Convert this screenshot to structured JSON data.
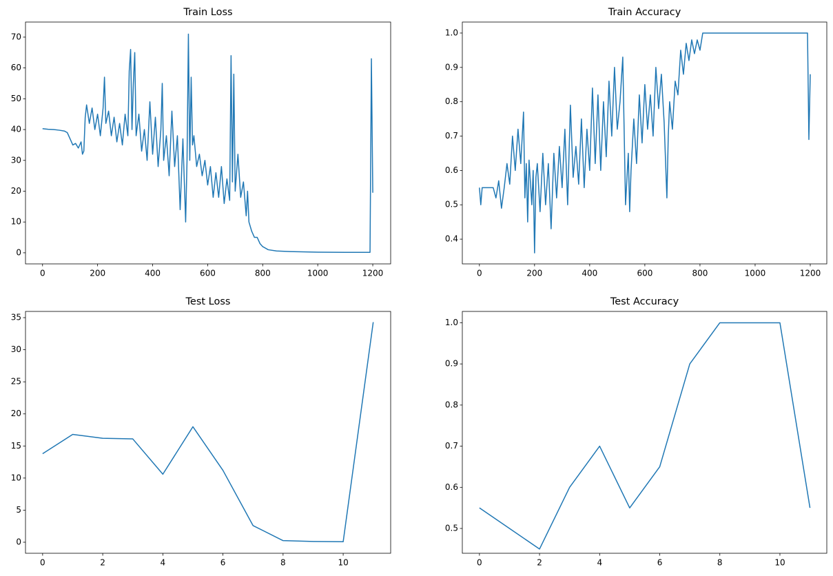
{
  "chart_data": [
    {
      "type": "line",
      "title": "Train Loss",
      "color": "#1f77b4",
      "grid": false,
      "x": [
        0,
        20,
        40,
        60,
        80,
        90,
        100,
        110,
        120,
        130,
        140,
        145,
        150,
        155,
        160,
        170,
        180,
        190,
        200,
        210,
        220,
        225,
        230,
        240,
        250,
        260,
        270,
        280,
        290,
        300,
        310,
        315,
        320,
        325,
        330,
        335,
        340,
        350,
        360,
        370,
        380,
        390,
        400,
        410,
        420,
        430,
        435,
        440,
        450,
        460,
        470,
        480,
        490,
        500,
        510,
        520,
        525,
        530,
        535,
        540,
        545,
        550,
        560,
        570,
        580,
        590,
        600,
        610,
        620,
        630,
        640,
        650,
        660,
        670,
        680,
        685,
        690,
        695,
        700,
        710,
        720,
        730,
        740,
        745,
        750,
        760,
        770,
        780,
        790,
        800,
        820,
        850,
        900,
        1000,
        1100,
        1190,
        1195,
        1200
      ],
      "values": [
        40.3,
        40.1,
        40.0,
        39.8,
        39.5,
        39.0,
        37,
        35,
        35.5,
        34,
        36,
        32,
        33,
        44,
        48,
        42,
        47,
        40,
        45,
        38,
        47,
        57,
        42,
        46,
        38,
        44,
        36,
        42,
        35,
        45,
        38,
        59,
        66,
        40,
        55,
        65,
        38,
        45,
        33,
        40,
        30,
        49,
        32,
        44,
        28,
        40,
        55,
        30,
        38,
        25,
        46,
        28,
        38,
        14,
        37,
        10,
        30,
        71,
        30,
        57,
        35,
        38,
        28,
        32,
        25,
        30,
        22,
        28,
        18,
        26,
        18,
        28,
        16,
        24,
        17,
        64,
        23,
        58,
        20,
        32,
        18,
        23,
        12,
        20,
        10,
        7,
        5,
        5,
        3,
        2,
        1,
        0.6,
        0.4,
        0.2,
        0.15,
        0.15,
        63,
        19.5
      ],
      "xlim": [
        -62,
        1265
      ],
      "ylim": [
        -3.6,
        74.9
      ],
      "xticks": [
        0,
        200,
        400,
        600,
        800,
        1000,
        1200
      ],
      "yticks": [
        0,
        10,
        20,
        30,
        40,
        50,
        60,
        70
      ]
    },
    {
      "type": "line",
      "title": "Train Accuracy",
      "color": "#1f77b4",
      "grid": false,
      "x": [
        0,
        5,
        10,
        50,
        60,
        70,
        80,
        90,
        100,
        110,
        120,
        130,
        140,
        150,
        160,
        165,
        170,
        175,
        180,
        190,
        195,
        200,
        205,
        210,
        220,
        230,
        240,
        250,
        260,
        270,
        280,
        290,
        300,
        310,
        320,
        330,
        340,
        350,
        360,
        370,
        380,
        390,
        400,
        410,
        420,
        430,
        440,
        450,
        460,
        470,
        480,
        490,
        500,
        510,
        520,
        530,
        540,
        545,
        550,
        560,
        570,
        580,
        590,
        600,
        610,
        620,
        630,
        640,
        650,
        660,
        670,
        680,
        685,
        690,
        700,
        710,
        720,
        730,
        740,
        750,
        760,
        770,
        780,
        790,
        800,
        810,
        1190,
        1195,
        1200
      ],
      "values": [
        0.55,
        0.5,
        0.55,
        0.55,
        0.52,
        0.57,
        0.49,
        0.55,
        0.62,
        0.56,
        0.7,
        0.6,
        0.72,
        0.62,
        0.77,
        0.52,
        0.62,
        0.45,
        0.63,
        0.5,
        0.6,
        0.36,
        0.58,
        0.62,
        0.48,
        0.65,
        0.5,
        0.62,
        0.43,
        0.65,
        0.52,
        0.67,
        0.55,
        0.72,
        0.5,
        0.79,
        0.58,
        0.67,
        0.56,
        0.75,
        0.55,
        0.72,
        0.6,
        0.84,
        0.62,
        0.82,
        0.6,
        0.8,
        0.64,
        0.86,
        0.7,
        0.9,
        0.72,
        0.8,
        0.93,
        0.5,
        0.65,
        0.48,
        0.6,
        0.75,
        0.62,
        0.82,
        0.68,
        0.85,
        0.72,
        0.82,
        0.7,
        0.9,
        0.78,
        0.88,
        0.74,
        0.52,
        0.7,
        0.8,
        0.72,
        0.86,
        0.82,
        0.95,
        0.88,
        0.97,
        0.92,
        0.98,
        0.94,
        0.98,
        0.95,
        1.0,
        1.0,
        0.69,
        0.88
      ],
      "xlim": [
        -62,
        1260
      ],
      "ylim": [
        0.328,
        1.032
      ],
      "xticks": [
        0,
        200,
        400,
        600,
        800,
        1000,
        1200
      ],
      "yticks": [
        0.4,
        0.5,
        0.6,
        0.7,
        0.8,
        0.9,
        {
          "value": 1,
          "label": "1.0"
        }
      ]
    },
    {
      "type": "line",
      "title": "Test Loss",
      "color": "#1f77b4",
      "grid": false,
      "x": [
        0,
        1,
        2,
        3,
        4,
        5,
        6,
        7,
        8,
        9,
        10,
        11
      ],
      "values": [
        13.8,
        16.8,
        16.2,
        16.1,
        10.6,
        18.0,
        11.2,
        2.6,
        0.25,
        0.12,
        0.08,
        34.3
      ],
      "xlim": [
        -0.57,
        11.58
      ],
      "ylim": [
        -1.72,
        35.97
      ],
      "xticks": [
        0,
        2,
        4,
        6,
        8,
        10
      ],
      "yticks": [
        0,
        5,
        10,
        15,
        20,
        25,
        30,
        35
      ]
    },
    {
      "type": "line",
      "title": "Test Accuracy",
      "color": "#1f77b4",
      "grid": false,
      "x": [
        0,
        1,
        2,
        3,
        4,
        5,
        6,
        7,
        8,
        9,
        10,
        11
      ],
      "values": [
        0.55,
        0.5,
        0.45,
        0.6,
        0.7,
        0.55,
        0.65,
        0.9,
        1.0,
        1.0,
        1.0,
        0.55
      ],
      "xlim": [
        -0.57,
        11.56
      ],
      "ylim": [
        0.4397,
        1.0276
      ],
      "xticks": [
        0,
        2,
        4,
        6,
        8,
        10
      ],
      "yticks": [
        0.5,
        0.6,
        0.7,
        0.8,
        0.9,
        {
          "value": 1,
          "label": "1.0"
        }
      ]
    }
  ]
}
